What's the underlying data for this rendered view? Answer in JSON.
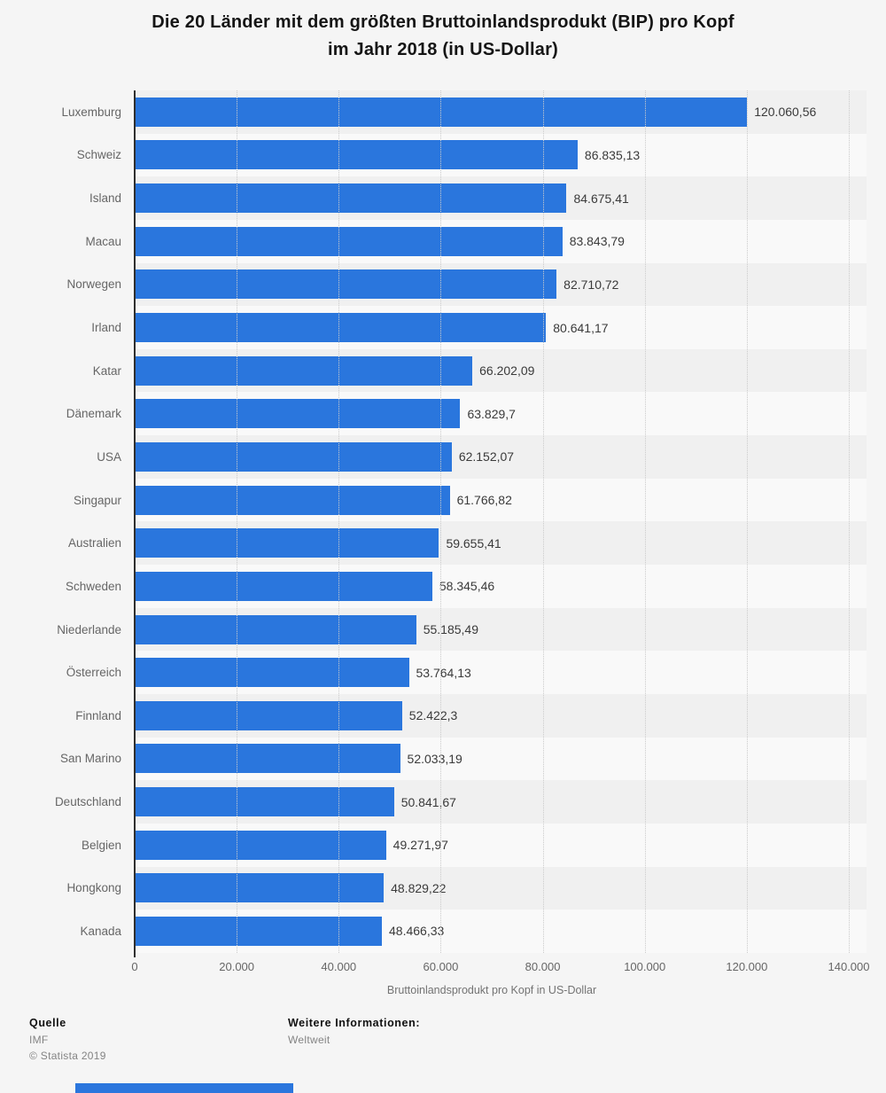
{
  "title_lines": [
    "Die 20 Länder mit dem größten Bruttoinlandsprodukt (BIP) pro Kopf",
    "im Jahr 2018 (in US-Dollar)"
  ],
  "chart_data": {
    "type": "bar",
    "orientation": "horizontal",
    "title": "Die 20 Länder mit dem größten Bruttoinlandsprodukt (BIP) pro Kopf im Jahr 2018 (in US-Dollar)",
    "xlabel": "Bruttoinlandsprodukt pro Kopf in US-Dollar",
    "ylabel": "",
    "xlim": [
      0,
      140000
    ],
    "x_ticks": [
      "0",
      "20.000",
      "40.000",
      "60.000",
      "80.000",
      "100.000",
      "120.000",
      "140.000"
    ],
    "grid": "vertical-dotted",
    "legend": "none",
    "bar_color": "#2a76dd",
    "categories": [
      "Luxemburg",
      "Schweiz",
      "Island",
      "Macau",
      "Norwegen",
      "Irland",
      "Katar",
      "Dänemark",
      "USA",
      "Singapur",
      "Australien",
      "Schweden",
      "Niederlande",
      "Österreich",
      "Finnland",
      "San Marino",
      "Deutschland",
      "Belgien",
      "Hongkong",
      "Kanada"
    ],
    "values": [
      120060.56,
      86835.13,
      84675.41,
      83843.79,
      82710.72,
      80641.17,
      66202.09,
      63829.7,
      62152.07,
      61766.82,
      59655.41,
      58345.46,
      55185.49,
      53764.13,
      52422.3,
      52033.19,
      50841.67,
      49271.97,
      48829.22,
      48466.33
    ],
    "value_labels": [
      "120.060,56",
      "86.835,13",
      "84.675,41",
      "83.843,79",
      "82.710,72",
      "80.641,17",
      "66.202,09",
      "63.829,7",
      "62.152,07",
      "61.766,82",
      "59.655,41",
      "58.345,46",
      "55.185,49",
      "53.764,13",
      "52.422,3",
      "52.033,19",
      "50.841,67",
      "49.271,97",
      "48.829,22",
      "48.466,33"
    ]
  },
  "footer": {
    "source_heading": "Quelle",
    "source": "IMF",
    "copyright": "© Statista 2019",
    "info_heading": "Weitere Informationen:",
    "info": "Weltweit"
  },
  "colors": {
    "bar": "#2a76dd",
    "background": "#f5f5f5",
    "band_dark": "#f0f0f0",
    "band_light": "#f9f9f9"
  }
}
